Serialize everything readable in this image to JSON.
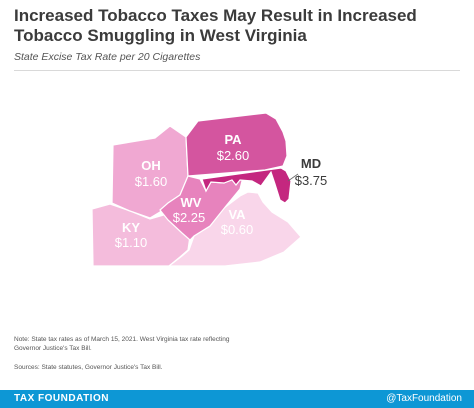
{
  "title": "Increased Tobacco Taxes May Result in Increased Tobacco Smuggling in West Virginia",
  "subtitle": "State Excise Tax Rate per 20 Cigarettes",
  "states": {
    "oh": {
      "abbr": "OH",
      "rate": "$1.60",
      "value": 1.6,
      "color": "#f0a8d2"
    },
    "pa": {
      "abbr": "PA",
      "rate": "$2.60",
      "value": 2.6,
      "color": "#d4559f"
    },
    "md": {
      "abbr": "MD",
      "rate": "$3.75",
      "value": 3.75,
      "color": "#c4277f"
    },
    "wv": {
      "abbr": "WV",
      "rate": "$2.25",
      "value": 2.25,
      "color": "#e783bd"
    },
    "ky": {
      "abbr": "KY",
      "rate": "$1.10",
      "value": 1.1,
      "color": "#f4bcdc"
    },
    "va": {
      "abbr": "VA",
      "rate": "$0.60",
      "value": 0.6,
      "color": "#f9d6ea"
    }
  },
  "note": "Note: State tax rates as of March 15, 2021. West Virginia tax rate reflecting Governor Justice's Tax Bill.",
  "sources": "Sources: State statutes, Governor Justice's Tax Bill.",
  "footer": {
    "left": "TAX FOUNDATION",
    "right": "@TaxFoundation",
    "color": "#0d97d5"
  }
}
